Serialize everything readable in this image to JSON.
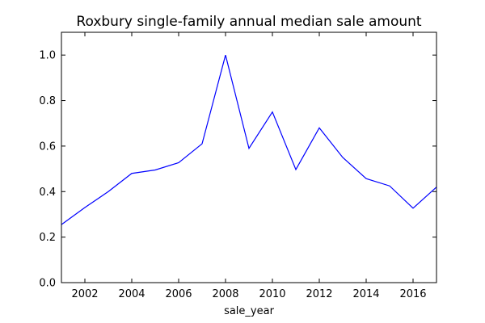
{
  "chart_data": {
    "type": "line",
    "title": "Roxbury single-family annual median sale amount",
    "xlabel": "sale_year",
    "ylabel": "",
    "xlim": [
      2001,
      2017
    ],
    "ylim": [
      0.0,
      1.1
    ],
    "xticks": [
      2002,
      2004,
      2006,
      2008,
      2010,
      2012,
      2014,
      2016
    ],
    "yticks": [
      0.0,
      0.2,
      0.4,
      0.6,
      0.8,
      1.0
    ],
    "xtick_labels": [
      "2002",
      "2004",
      "2006",
      "2008",
      "2010",
      "2012",
      "2014",
      "2016"
    ],
    "ytick_labels": [
      "0.0",
      "0.2",
      "0.4",
      "0.6",
      "0.8",
      "1.0"
    ],
    "grid": false,
    "series": [
      {
        "color": "#0000ff",
        "x": [
          2001,
          2002,
          2003,
          2004,
          2005,
          2006,
          2007,
          2008,
          2009,
          2010,
          2011,
          2012,
          2013,
          2014,
          2015,
          2016,
          2017
        ],
        "y": [
          0.255,
          0.33,
          0.4,
          0.48,
          0.495,
          0.527,
          0.61,
          1.0,
          0.59,
          0.75,
          0.497,
          0.68,
          0.55,
          0.457,
          0.425,
          0.327,
          0.42
        ]
      }
    ]
  }
}
